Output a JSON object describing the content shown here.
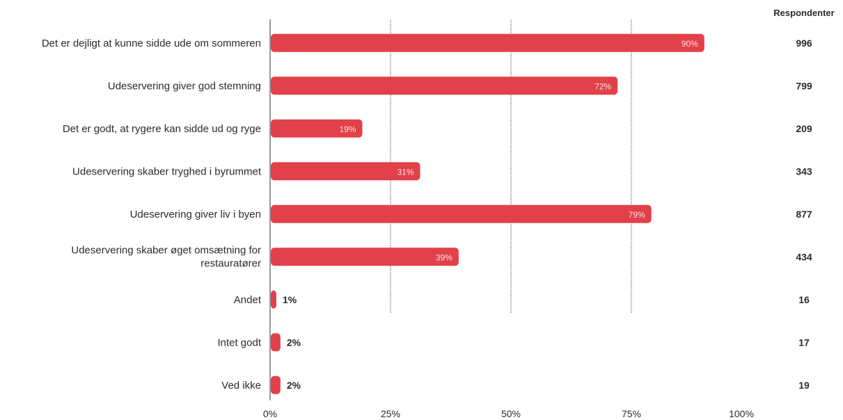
{
  "chart_data": {
    "type": "bar",
    "orientation": "horizontal",
    "categories": [
      "Det er dejligt at kunne sidde ude om sommeren",
      "Udeservering giver god stemning",
      "Det er godt, at rygere kan sidde ud og ryge",
      "Udeservering skaber tryghed i byrummet",
      "Udeservering giver liv i byen",
      "Udeservering skaber øget omsætning for restauratører",
      "Andet",
      "Intet godt",
      "Ved ikke"
    ],
    "values": [
      90,
      72,
      19,
      31,
      79,
      39,
      1,
      2,
      2
    ],
    "value_labels": [
      "90%",
      "72%",
      "19%",
      "31%",
      "79%",
      "39%",
      "1%",
      "2%",
      "2%"
    ],
    "respondents_header": "Respondenter",
    "respondents": [
      "996",
      "799",
      "209",
      "343",
      "877",
      "434",
      "16",
      "17",
      "19"
    ],
    "x_ticks": [
      "0%",
      "25%",
      "50%",
      "75%",
      "100%"
    ],
    "xlim": [
      0,
      100
    ],
    "bar_color": "#e2404a",
    "grid": true
  }
}
